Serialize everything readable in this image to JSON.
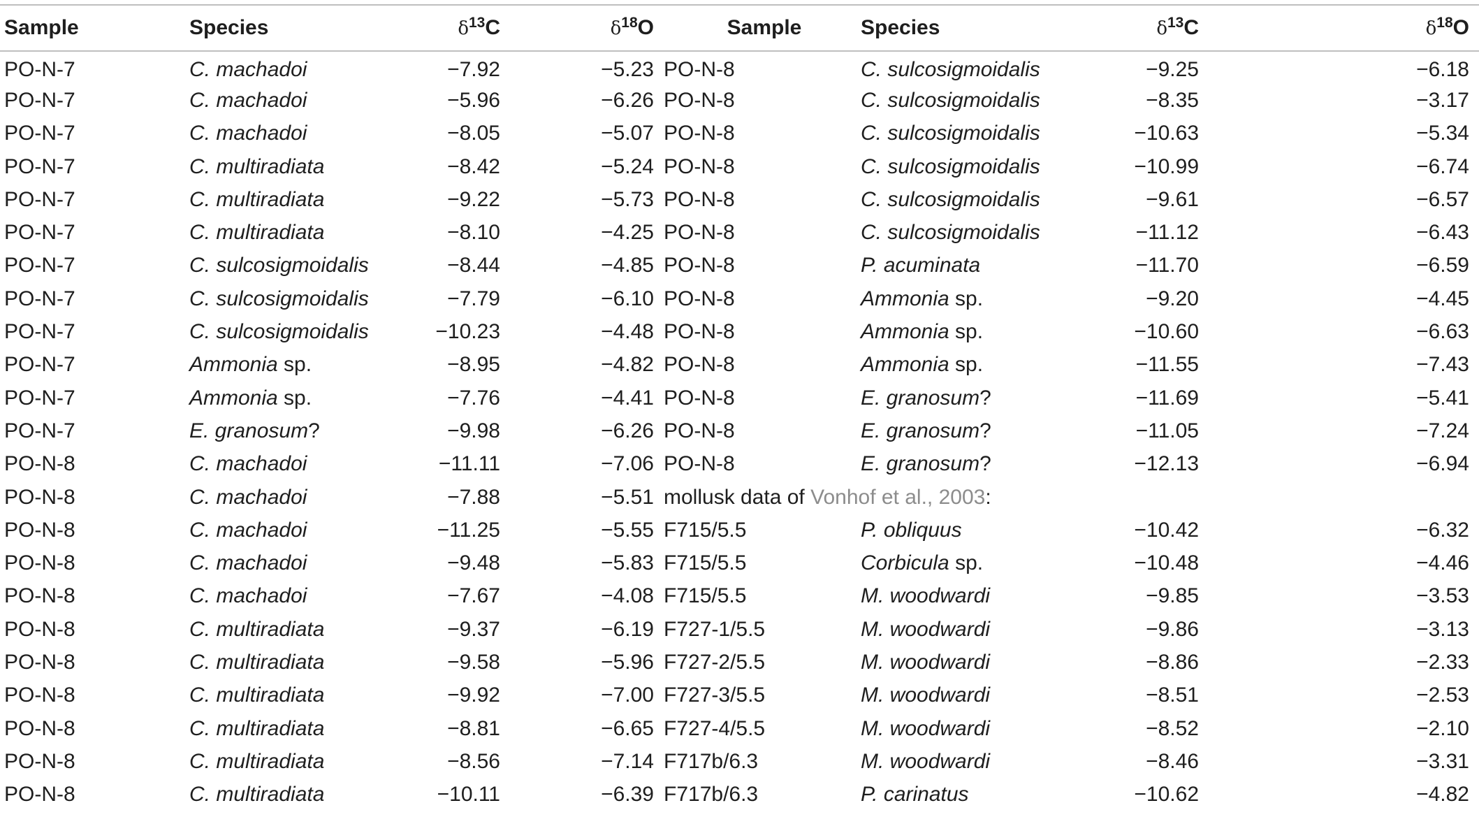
{
  "headers": {
    "sample": "Sample",
    "species": "Species",
    "d13c_delta": "δ",
    "d13c_sup": "13",
    "d13c_el": "C",
    "d18o_delta": "δ",
    "d18o_sup": "18",
    "d18o_el": "O"
  },
  "note": {
    "prefix": "mollusk data of ",
    "link": "Vonhof et al., 2003",
    "suffix": ":"
  },
  "rows": [
    {
      "left": {
        "sample": "PO-N-7",
        "genus": "C. machadoi",
        "suffix": "",
        "d13c": "−7.92",
        "d18o": "−5.23"
      },
      "right": {
        "sample": "PO-N-8",
        "genus": "C. sulcosigmoidalis",
        "suffix": "",
        "d13c": "−9.25",
        "d18o": "−6.18"
      }
    },
    {
      "left": {
        "sample": "PO-N-7",
        "genus": "C. machadoi",
        "suffix": "",
        "d13c": "−5.96",
        "d18o": "−6.26"
      },
      "right": {
        "sample": "PO-N-8",
        "genus": "C. sulcosigmoidalis",
        "suffix": "",
        "d13c": "−8.35",
        "d18o": "−3.17"
      }
    },
    {
      "left": {
        "sample": "PO-N-7",
        "genus": "C. machadoi",
        "suffix": "",
        "d13c": "−8.05",
        "d18o": "−5.07"
      },
      "right": {
        "sample": "PO-N-8",
        "genus": "C. sulcosigmoidalis",
        "suffix": "",
        "d13c": "−10.63",
        "d18o": "−5.34"
      }
    },
    {
      "left": {
        "sample": "PO-N-7",
        "genus": "C. multiradiata",
        "suffix": "",
        "d13c": "−8.42",
        "d18o": "−5.24"
      },
      "right": {
        "sample": "PO-N-8",
        "genus": "C. sulcosigmoidalis",
        "suffix": "",
        "d13c": "−10.99",
        "d18o": "−6.74"
      }
    },
    {
      "left": {
        "sample": "PO-N-7",
        "genus": "C. multiradiata",
        "suffix": "",
        "d13c": "−9.22",
        "d18o": "−5.73"
      },
      "right": {
        "sample": "PO-N-8",
        "genus": "C. sulcosigmoidalis",
        "suffix": "",
        "d13c": "−9.61",
        "d18o": "−6.57"
      }
    },
    {
      "left": {
        "sample": "PO-N-7",
        "genus": "C. multiradiata",
        "suffix": "",
        "d13c": "−8.10",
        "d18o": "−4.25"
      },
      "right": {
        "sample": "PO-N-8",
        "genus": "C. sulcosigmoidalis",
        "suffix": "",
        "d13c": "−11.12",
        "d18o": "−6.43"
      }
    },
    {
      "left": {
        "sample": "PO-N-7",
        "genus": "C. sulcosigmoidalis",
        "suffix": "",
        "d13c": "−8.44",
        "d18o": "−4.85"
      },
      "right": {
        "sample": "PO-N-8",
        "genus": "P. acuminata",
        "suffix": "",
        "d13c": "−11.70",
        "d18o": "−6.59"
      }
    },
    {
      "left": {
        "sample": "PO-N-7",
        "genus": "C. sulcosigmoidalis",
        "suffix": "",
        "d13c": "−7.79",
        "d18o": "−6.10"
      },
      "right": {
        "sample": "PO-N-8",
        "genus": "Ammonia",
        "suffix": " sp.",
        "d13c": "−9.20",
        "d18o": "−4.45"
      }
    },
    {
      "left": {
        "sample": "PO-N-7",
        "genus": "C. sulcosigmoidalis",
        "suffix": "",
        "d13c": "−10.23",
        "d18o": "−4.48"
      },
      "right": {
        "sample": "PO-N-8",
        "genus": "Ammonia",
        "suffix": " sp.",
        "d13c": "−10.60",
        "d18o": "−6.63"
      }
    },
    {
      "left": {
        "sample": "PO-N-7",
        "genus": "Ammonia",
        "suffix": " sp.",
        "d13c": "−8.95",
        "d18o": "−4.82"
      },
      "right": {
        "sample": "PO-N-8",
        "genus": "Ammonia",
        "suffix": " sp.",
        "d13c": "−11.55",
        "d18o": "−7.43"
      }
    },
    {
      "left": {
        "sample": "PO-N-7",
        "genus": "Ammonia",
        "suffix": " sp.",
        "d13c": "−7.76",
        "d18o": "−4.41"
      },
      "right": {
        "sample": "PO-N-8",
        "genus": "E. granosum",
        "suffix": "?",
        "d13c": "−11.69",
        "d18o": "−5.41"
      }
    },
    {
      "left": {
        "sample": "PO-N-7",
        "genus": "E. granosum",
        "suffix": "?",
        "d13c": "−9.98",
        "d18o": "−6.26"
      },
      "right": {
        "sample": "PO-N-8",
        "genus": "E. granosum",
        "suffix": "?",
        "d13c": "−11.05",
        "d18o": "−7.24"
      }
    },
    {
      "left": {
        "sample": "PO-N-8",
        "genus": "C. machadoi",
        "suffix": "",
        "d13c": "−11.11",
        "d18o": "−7.06"
      },
      "right": {
        "sample": "PO-N-8",
        "genus": "E. granosum",
        "suffix": "?",
        "d13c": "−12.13",
        "d18o": "−6.94"
      }
    },
    {
      "left": {
        "sample": "PO-N-8",
        "genus": "C. machadoi",
        "suffix": "",
        "d13c": "−7.88",
        "d18o": "−5.51"
      },
      "right": null
    },
    {
      "left": {
        "sample": "PO-N-8",
        "genus": "C. machadoi",
        "suffix": "",
        "d13c": "−11.25",
        "d18o": "−5.55"
      },
      "right": {
        "sample": "F715/5.5",
        "genus": "P. obliquus",
        "suffix": "",
        "d13c": "−10.42",
        "d18o": "−6.32"
      }
    },
    {
      "left": {
        "sample": "PO-N-8",
        "genus": "C. machadoi",
        "suffix": "",
        "d13c": "−9.48",
        "d18o": "−5.83"
      },
      "right": {
        "sample": "F715/5.5",
        "genus": "Corbicula",
        "suffix": " sp.",
        "d13c": "−10.48",
        "d18o": "−4.46"
      }
    },
    {
      "left": {
        "sample": "PO-N-8",
        "genus": "C. machadoi",
        "suffix": "",
        "d13c": "−7.67",
        "d18o": "−4.08"
      },
      "right": {
        "sample": "F715/5.5",
        "genus": "M. woodwardi",
        "suffix": "",
        "d13c": "−9.85",
        "d18o": "−3.53"
      }
    },
    {
      "left": {
        "sample": "PO-N-8",
        "genus": "C. multiradiata",
        "suffix": "",
        "d13c": "−9.37",
        "d18o": "−6.19"
      },
      "right": {
        "sample": "F727-1/5.5",
        "genus": "M. woodwardi",
        "suffix": "",
        "d13c": "−9.86",
        "d18o": "−3.13"
      }
    },
    {
      "left": {
        "sample": "PO-N-8",
        "genus": "C. multiradiata",
        "suffix": "",
        "d13c": "−9.58",
        "d18o": "−5.96"
      },
      "right": {
        "sample": "F727-2/5.5",
        "genus": "M. woodwardi",
        "suffix": "",
        "d13c": "−8.86",
        "d18o": "−2.33"
      }
    },
    {
      "left": {
        "sample": "PO-N-8",
        "genus": "C. multiradiata",
        "suffix": "",
        "d13c": "−9.92",
        "d18o": "−7.00"
      },
      "right": {
        "sample": "F727-3/5.5",
        "genus": "M. woodwardi",
        "suffix": "",
        "d13c": "−8.51",
        "d18o": "−2.53"
      }
    },
    {
      "left": {
        "sample": "PO-N-8",
        "genus": "C. multiradiata",
        "suffix": "",
        "d13c": "−8.81",
        "d18o": "−6.65"
      },
      "right": {
        "sample": "F727-4/5.5",
        "genus": "M. woodwardi",
        "suffix": "",
        "d13c": "−8.52",
        "d18o": "−2.10"
      }
    },
    {
      "left": {
        "sample": "PO-N-8",
        "genus": "C. multiradiata",
        "suffix": "",
        "d13c": "−8.56",
        "d18o": "−7.14"
      },
      "right": {
        "sample": "F717b/6.3",
        "genus": "M. woodwardi",
        "suffix": "",
        "d13c": "−8.46",
        "d18o": "−3.31"
      }
    },
    {
      "left": {
        "sample": "PO-N-8",
        "genus": "C. multiradiata",
        "suffix": "",
        "d13c": "−10.11",
        "d18o": "−6.39"
      },
      "right": {
        "sample": "F717b/6.3",
        "genus": "P. carinatus",
        "suffix": "",
        "d13c": "−10.62",
        "d18o": "−4.82"
      }
    }
  ]
}
